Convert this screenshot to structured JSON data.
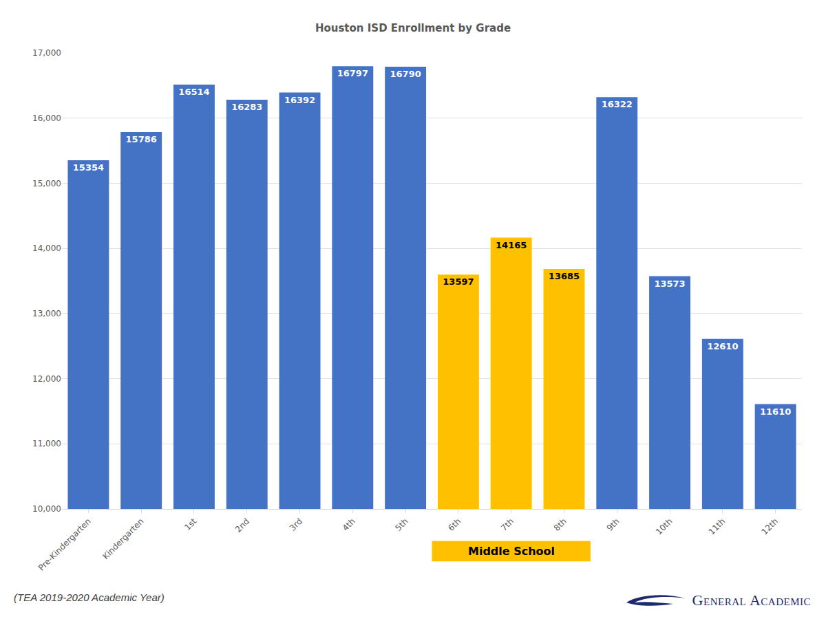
{
  "chart_data": {
    "type": "bar",
    "title": "Houston ISD Enrollment by Grade",
    "categories": [
      "Pre-Kindergarten",
      "Kindergarten",
      "1st",
      "2nd",
      "3rd",
      "4th",
      "5th",
      "6th",
      "7th",
      "8th",
      "9th",
      "10th",
      "11th",
      "12th"
    ],
    "values": [
      15354,
      15786,
      16514,
      16283,
      16392,
      16797,
      16790,
      13597,
      14165,
      13685,
      16322,
      13573,
      12610,
      11610
    ],
    "colors": [
      "#4472c4",
      "#4472c4",
      "#4472c4",
      "#4472c4",
      "#4472c4",
      "#4472c4",
      "#4472c4",
      "#ffc000",
      "#ffc000",
      "#ffc000",
      "#4472c4",
      "#4472c4",
      "#4472c4",
      "#4472c4"
    ],
    "ylim": [
      10000,
      17000
    ],
    "yticks": [
      {
        "value": 10000,
        "label": "10,000"
      },
      {
        "value": 11000,
        "label": "11,000"
      },
      {
        "value": 12000,
        "label": "12,000"
      },
      {
        "value": 13000,
        "label": "13,000"
      },
      {
        "value": 14000,
        "label": "14,000"
      },
      {
        "value": 15000,
        "label": "15,000"
      },
      {
        "value": 16000,
        "label": "16,000"
      },
      {
        "value": 17000,
        "label": "17,000"
      }
    ],
    "grid": true,
    "data_labels": true,
    "annotations": [
      {
        "text": "Middle School",
        "categories": [
          "6th",
          "7th",
          "8th"
        ],
        "color": "#ffc000"
      }
    ],
    "source": "(TEA 2019-2020 Academic Year)",
    "logo": "General Academic"
  }
}
